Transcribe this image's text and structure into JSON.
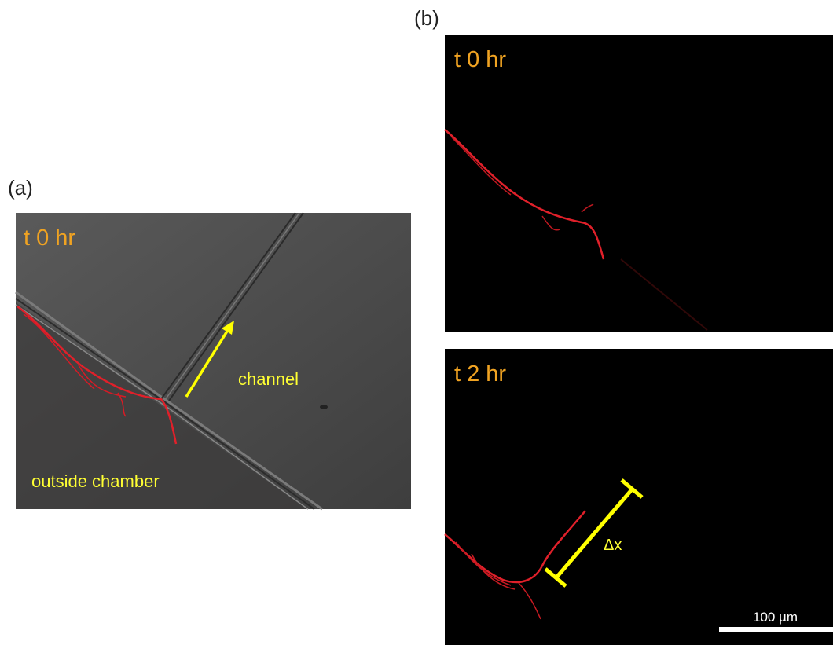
{
  "panel_a": {
    "label": "(a)",
    "time": "t 0 hr",
    "channel_label": "channel",
    "outside_label": "outside chamber"
  },
  "panel_b": {
    "label": "(b)",
    "top_time": "t 0 hr",
    "bottom_time": "t 2 hr",
    "distance_label": "Δx",
    "scale_bar": "100 µm"
  }
}
